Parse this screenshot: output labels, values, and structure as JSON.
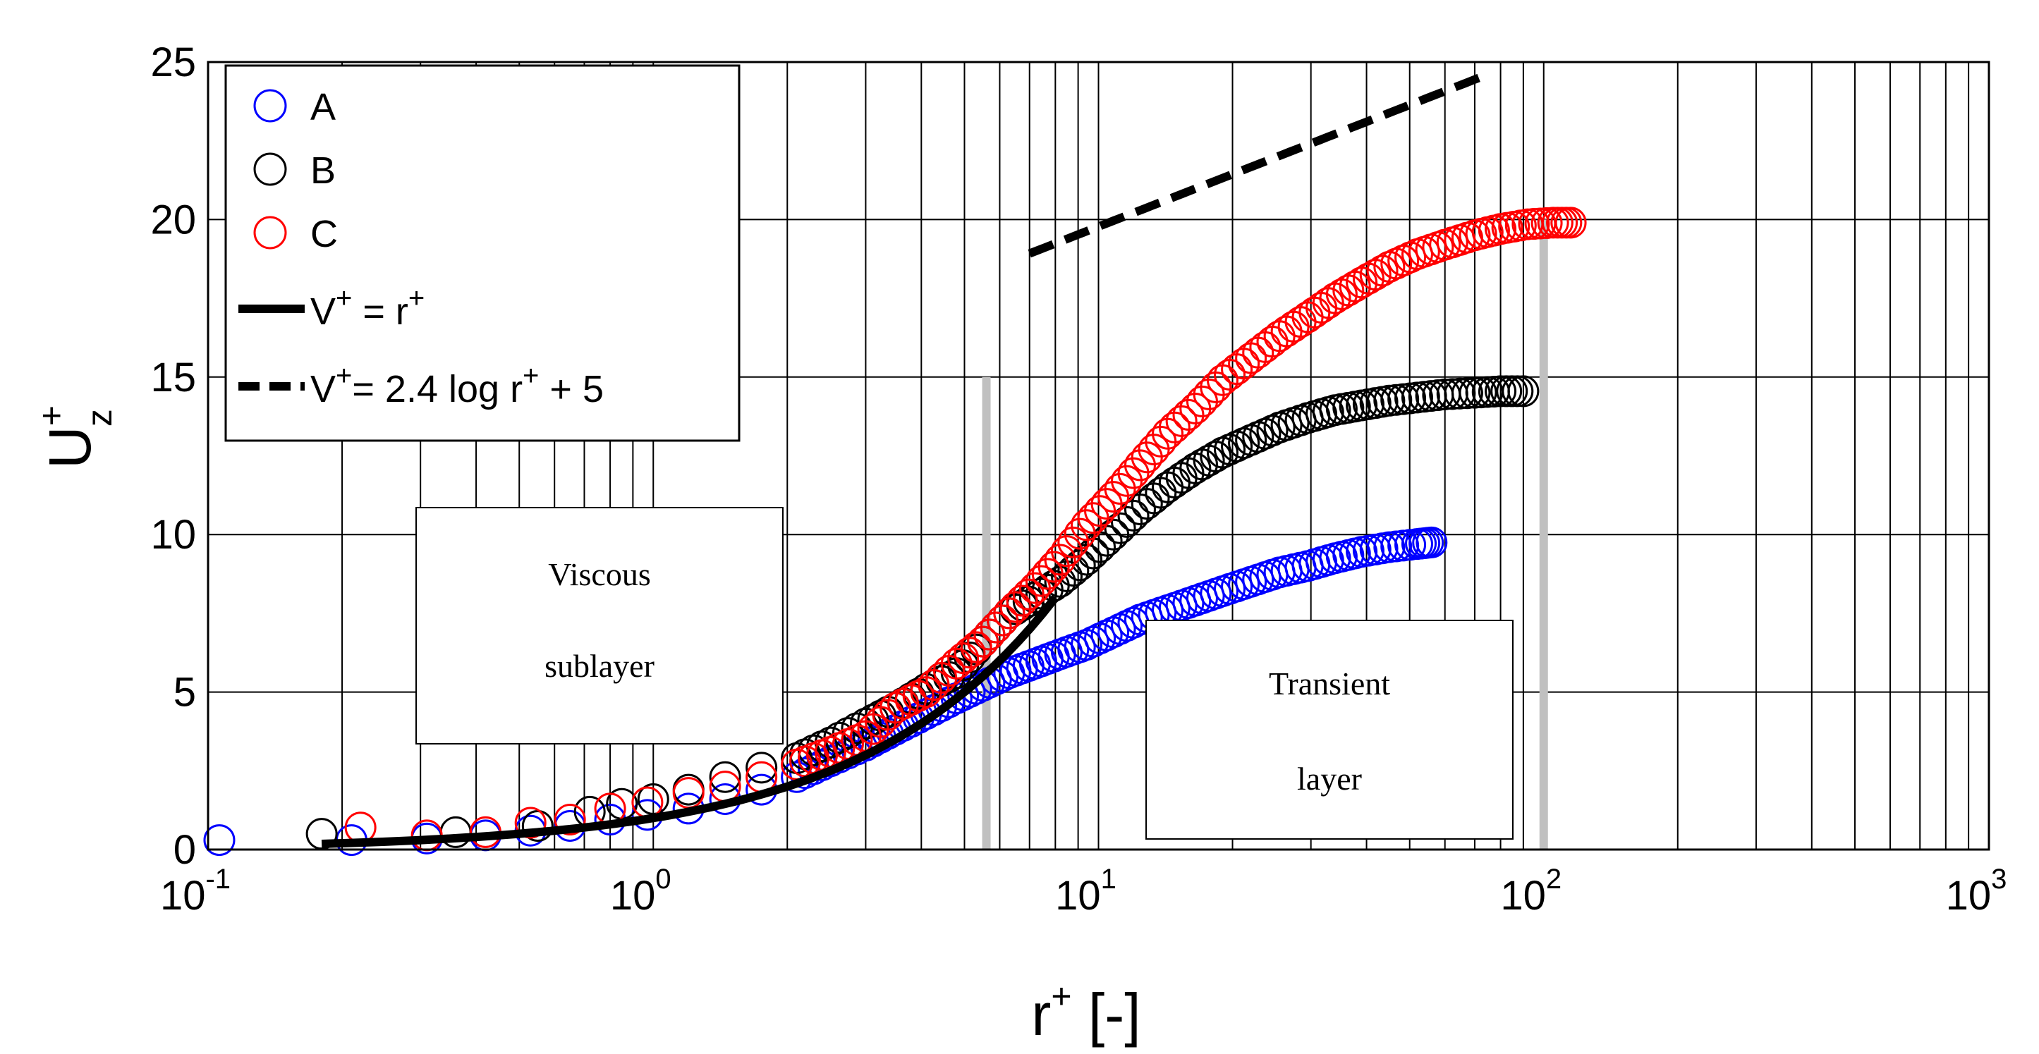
{
  "chart_data": {
    "type": "scatter",
    "x_scale": "log",
    "xlim": [
      0.1,
      1000
    ],
    "ylim": [
      0,
      25
    ],
    "grid": true,
    "xlabel": {
      "base": "r",
      "sup": "+",
      "rest": " [-]"
    },
    "ylabel": {
      "base": "U",
      "sup": "+",
      "sub": "z"
    },
    "x_ticks": [
      {
        "mantissa": "10",
        "exponent": "-1",
        "value": 0.1
      },
      {
        "mantissa": "10",
        "exponent": "0",
        "value": 1
      },
      {
        "mantissa": "10",
        "exponent": "1",
        "value": 10
      },
      {
        "mantissa": "10",
        "exponent": "2",
        "value": 100
      },
      {
        "mantissa": "10",
        "exponent": "3",
        "value": 1000
      }
    ],
    "y_ticks": [
      "0",
      "5",
      "10",
      "15",
      "20",
      "25"
    ],
    "legend_position": "top-left",
    "legend": [
      {
        "label": "A",
        "kind": "marker",
        "color": "#0000ff"
      },
      {
        "label": "B",
        "kind": "marker",
        "color": "#000000"
      },
      {
        "label": "C",
        "kind": "marker",
        "color": "#ff0000"
      },
      {
        "label": "V",
        "sup1": "+",
        "label_mid": " = r",
        "sup2": "+",
        "label_end": "",
        "kind": "solid",
        "color": "#000000"
      },
      {
        "label": "V",
        "sup1": "+",
        "label_mid": "= 2.4 log r",
        "sup2": "+",
        "label_end": " + 5",
        "kind": "dashed",
        "color": "#000000"
      }
    ],
    "series": [
      {
        "name": "A",
        "color": "#0000ff",
        "x": [
          0.106,
          0.21,
          0.31,
          0.42,
          0.53,
          0.65,
          0.8,
          0.97,
          1.2,
          1.45,
          1.75,
          2.1,
          2.5,
          3.0,
          3.5,
          4.1,
          4.8,
          5.5,
          6.3,
          7.2,
          8.2,
          9.4,
          10.8,
          12.4,
          14.3,
          16.5,
          19.0,
          22.0,
          25.5,
          29.5,
          34.0,
          39.0,
          45.0,
          52.0,
          56.0
        ],
        "y": [
          0.3,
          0.3,
          0.35,
          0.45,
          0.6,
          0.75,
          0.95,
          1.1,
          1.3,
          1.6,
          1.9,
          2.3,
          2.8,
          3.3,
          3.8,
          4.3,
          4.8,
          5.2,
          5.6,
          5.9,
          6.2,
          6.5,
          6.9,
          7.3,
          7.6,
          7.9,
          8.2,
          8.5,
          8.8,
          9.0,
          9.25,
          9.45,
          9.6,
          9.7,
          9.75
        ]
      },
      {
        "name": "B",
        "color": "#000000",
        "x": [
          0.18,
          0.36,
          0.55,
          0.72,
          0.85,
          1.0,
          1.2,
          1.45,
          1.75,
          2.1,
          2.5,
          3.0,
          3.5,
          4.1,
          4.8,
          5.5,
          6.3,
          7.2,
          8.2,
          9.4,
          10.8,
          12.4,
          14.3,
          16.5,
          19.0,
          22.0,
          25.5,
          29.5,
          34.0,
          39.0,
          45.0,
          52.0,
          60.0,
          70.0,
          80.0,
          90.0
        ],
        "y": [
          0.5,
          0.55,
          0.75,
          1.2,
          1.45,
          1.6,
          1.9,
          2.3,
          2.6,
          2.9,
          3.4,
          4.0,
          4.5,
          5.1,
          5.6,
          6.6,
          7.5,
          8.0,
          8.5,
          9.2,
          10.0,
          10.8,
          11.5,
          12.1,
          12.6,
          13.0,
          13.4,
          13.7,
          13.95,
          14.1,
          14.25,
          14.35,
          14.45,
          14.5,
          14.55,
          14.55
        ]
      },
      {
        "name": "C",
        "color": "#ff0000",
        "x": [
          0.22,
          0.31,
          0.42,
          0.53,
          0.65,
          0.8,
          0.97,
          1.2,
          1.45,
          1.75,
          2.1,
          2.5,
          3.0,
          3.5,
          4.1,
          4.8,
          5.5,
          6.3,
          7.2,
          8.2,
          9.4,
          10.8,
          12.4,
          14.3,
          16.5,
          19.0,
          22.0,
          25.5,
          29.5,
          34.0,
          39.0,
          45.0,
          52.0,
          60.0,
          70.0,
          80.0,
          92.0,
          105.0,
          115.0
        ],
        "y": [
          0.7,
          0.45,
          0.55,
          0.85,
          0.95,
          1.3,
          1.5,
          1.8,
          2.0,
          2.3,
          2.7,
          3.1,
          3.6,
          4.5,
          5.0,
          5.9,
          6.6,
          7.5,
          8.3,
          9.2,
          10.3,
          11.2,
          12.2,
          13.2,
          14.0,
          14.9,
          15.6,
          16.3,
          16.9,
          17.5,
          18.0,
          18.5,
          18.9,
          19.2,
          19.5,
          19.7,
          19.85,
          19.9,
          19.9
        ]
      }
    ],
    "reference_lines": [
      {
        "name": "viscous-sublayer-line",
        "style": "solid",
        "color": "#000000",
        "x_start": 0.18,
        "x_end": 8.0,
        "y_model": "linear"
      },
      {
        "name": "log-law-line",
        "style": "dashed",
        "color": "#000000",
        "x_start": 7.0,
        "x_end": 75.0,
        "y_model": "loglaw"
      }
    ],
    "boundary_lines": [
      {
        "name": "boundary-line-left",
        "x": 5.6,
        "y_top": 15,
        "color": "#c0c0c0"
      },
      {
        "name": "boundary-line-right",
        "x": 100,
        "y_top": 20,
        "color": "#c0c0c0"
      }
    ],
    "annotations": [
      {
        "name": "viscous-sublayer-label",
        "lines": [
          "Viscous",
          "sublayer"
        ]
      },
      {
        "name": "transient-layer-label",
        "lines": [
          "Transient",
          "layer"
        ]
      }
    ]
  }
}
